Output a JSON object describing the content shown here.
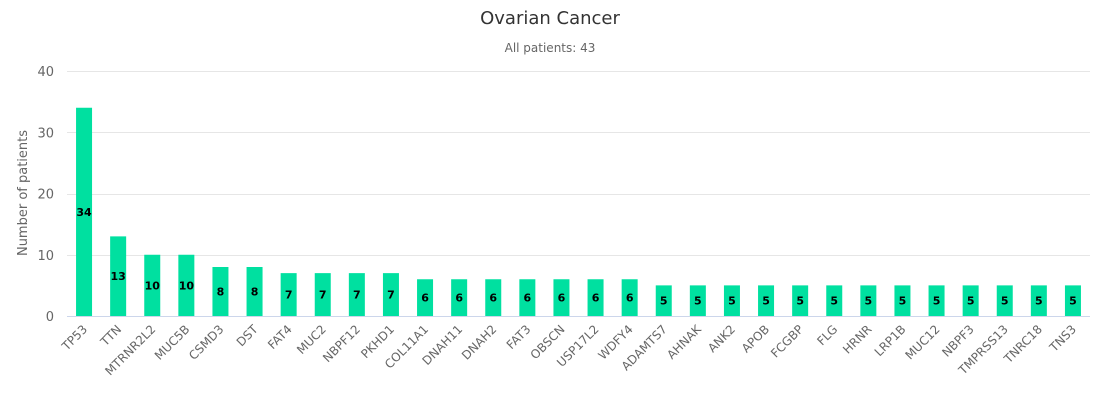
{
  "chart_data": {
    "type": "bar",
    "title": "Ovarian Cancer",
    "subtitle": "All patients: 43",
    "xlabel": "",
    "ylabel": "Number of patients",
    "ylim": [
      0,
      40
    ],
    "yticks": [
      0,
      10,
      20,
      30,
      40
    ],
    "grid": true,
    "color": "#00e0a0",
    "categories": [
      "TP53",
      "TTN",
      "MTRNR2L2",
      "MUC5B",
      "CSMD3",
      "DST",
      "FAT4",
      "MUC2",
      "NBPF12",
      "PKHD1",
      "COL11A1",
      "DNAH11",
      "DNAH2",
      "FAT3",
      "OBSCN",
      "USP17L2",
      "WDFY4",
      "ADAMTS7",
      "AHNAK",
      "ANK2",
      "APOB",
      "FCGBP",
      "FLG",
      "HRNR",
      "LRP1B",
      "MUC12",
      "NBPF3",
      "TMPRSS13",
      "TNRC18",
      "TNS3"
    ],
    "values": [
      34,
      13,
      10,
      10,
      8,
      8,
      7,
      7,
      7,
      7,
      6,
      6,
      6,
      6,
      6,
      6,
      6,
      5,
      5,
      5,
      5,
      5,
      5,
      5,
      5,
      5,
      5,
      5,
      5,
      5
    ]
  }
}
